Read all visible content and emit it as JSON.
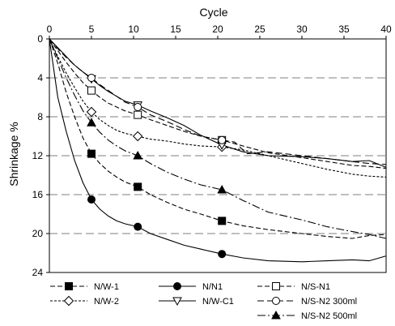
{
  "chart_data": {
    "type": "line",
    "title": "",
    "xlabel": "Cycle",
    "ylabel": "Shrinkage %",
    "xlim": [
      0,
      40
    ],
    "ylim": [
      0,
      24
    ],
    "y_inverted": true,
    "x_axis_position": "top",
    "xticks": [
      0,
      5,
      10,
      15,
      20,
      25,
      30,
      35,
      40
    ],
    "yticks": [
      0,
      4,
      8,
      12,
      16,
      20,
      24
    ],
    "grid": "horizontal dashed",
    "legend_position": "bottom",
    "series": [
      {
        "name": "N/W-1",
        "marker": "square-filled",
        "dash": "6,3",
        "color": "#000000",
        "marker_points": [
          [
            5,
            11.8
          ],
          [
            10.5,
            15.2
          ],
          [
            20.5,
            18.7
          ]
        ],
        "points": [
          [
            0,
            0
          ],
          [
            1,
            2.5
          ],
          [
            2,
            5.5
          ],
          [
            3,
            8
          ],
          [
            4,
            10.2
          ],
          [
            5,
            11.8
          ],
          [
            6,
            12.8
          ],
          [
            7,
            13.6
          ],
          [
            8,
            14.2
          ],
          [
            9,
            14.7
          ],
          [
            10.5,
            15.2
          ],
          [
            12,
            16
          ],
          [
            14,
            16.8
          ],
          [
            16,
            17.5
          ],
          [
            18,
            18
          ],
          [
            20.5,
            18.7
          ],
          [
            23,
            19.2
          ],
          [
            26,
            19.6
          ],
          [
            30,
            20
          ],
          [
            33,
            20.3
          ],
          [
            36,
            20.5
          ],
          [
            38,
            20.2
          ],
          [
            40,
            20.1
          ]
        ]
      },
      {
        "name": "N/N1",
        "marker": "circle-filled",
        "dash": "",
        "color": "#000000",
        "marker_points": [
          [
            5,
            16.5
          ],
          [
            10.5,
            19.3
          ],
          [
            20.5,
            22.1
          ]
        ],
        "points": [
          [
            0,
            0
          ],
          [
            0.5,
            3
          ],
          [
            1,
            6
          ],
          [
            2,
            9.5
          ],
          [
            3,
            12.5
          ],
          [
            4,
            14.8
          ],
          [
            5,
            16.5
          ],
          [
            6,
            17.5
          ],
          [
            7,
            18.2
          ],
          [
            8,
            18.7
          ],
          [
            9,
            19
          ],
          [
            10.5,
            19.3
          ],
          [
            12,
            20
          ],
          [
            14,
            20.6
          ],
          [
            16,
            21.2
          ],
          [
            18,
            21.6
          ],
          [
            20.5,
            22.1
          ],
          [
            23,
            22.5
          ],
          [
            26,
            22.8
          ],
          [
            30,
            22.9
          ],
          [
            33,
            22.8
          ],
          [
            36,
            22.7
          ],
          [
            38,
            22.8
          ],
          [
            40,
            22.3
          ]
        ]
      },
      {
        "name": "N/S-N1",
        "marker": "square-open",
        "dash": "6,3",
        "color": "#000000",
        "marker_points": [
          [
            5,
            5.3
          ],
          [
            10.5,
            7.8
          ],
          [
            20.5,
            10.4
          ]
        ],
        "points": [
          [
            0,
            0
          ],
          [
            1,
            1.2
          ],
          [
            2,
            2.4
          ],
          [
            3,
            3.5
          ],
          [
            4,
            4.5
          ],
          [
            5,
            5.3
          ],
          [
            6,
            6
          ],
          [
            7,
            6.6
          ],
          [
            8,
            7
          ],
          [
            9,
            7.4
          ],
          [
            10.5,
            7.8
          ],
          [
            12,
            8.3
          ],
          [
            14,
            8.9
          ],
          [
            16,
            9.5
          ],
          [
            18,
            10
          ],
          [
            20.5,
            10.4
          ],
          [
            23,
            11
          ],
          [
            26,
            11.7
          ],
          [
            30,
            12.2
          ],
          [
            33,
            12.6
          ],
          [
            36,
            13
          ],
          [
            38,
            13.1
          ],
          [
            40,
            13.3
          ]
        ]
      },
      {
        "name": "N/W-2",
        "marker": "diamond-open",
        "dash": "3,2",
        "color": "#000000",
        "marker_points": [
          [
            5,
            7.5
          ],
          [
            10.5,
            10
          ],
          [
            20.5,
            11.1
          ]
        ],
        "points": [
          [
            0,
            0
          ],
          [
            1,
            1.8
          ],
          [
            2,
            3.5
          ],
          [
            3,
            5
          ],
          [
            4,
            6.4
          ],
          [
            5,
            7.5
          ],
          [
            6,
            8.3
          ],
          [
            7,
            8.9
          ],
          [
            8,
            9.4
          ],
          [
            9,
            9.7
          ],
          [
            10.5,
            10
          ],
          [
            12,
            10.3
          ],
          [
            14,
            10.5
          ],
          [
            16,
            10.8
          ],
          [
            18,
            11
          ],
          [
            20.5,
            11.1
          ],
          [
            23,
            11.4
          ],
          [
            26,
            12
          ],
          [
            30,
            12.8
          ],
          [
            33,
            13.4
          ],
          [
            36,
            13.9
          ],
          [
            38,
            14.1
          ],
          [
            40,
            14.2
          ]
        ]
      },
      {
        "name": "N/W-C1",
        "marker": "triangle-down-open",
        "dash": "",
        "color": "#000000",
        "marker_points": [
          [
            5,
            4.1
          ],
          [
            10.5,
            6.8
          ],
          [
            20.5,
            10.9
          ]
        ],
        "points": [
          [
            0,
            0
          ],
          [
            1,
            0.9
          ],
          [
            2,
            1.8
          ],
          [
            3,
            2.7
          ],
          [
            4,
            3.4
          ],
          [
            5,
            4.1
          ],
          [
            6,
            4.8
          ],
          [
            7,
            5.4
          ],
          [
            8,
            5.9
          ],
          [
            9,
            6.4
          ],
          [
            10.5,
            6.8
          ],
          [
            12,
            7.4
          ],
          [
            14,
            8.1
          ],
          [
            16,
            8.9
          ],
          [
            18,
            9.9
          ],
          [
            20.5,
            10.9
          ],
          [
            23,
            11.6
          ],
          [
            26,
            12
          ],
          [
            30,
            12.1
          ],
          [
            33,
            12.3
          ],
          [
            36,
            12.6
          ],
          [
            38,
            12.5
          ],
          [
            40,
            13.2
          ]
        ]
      },
      {
        "name": "N/S-N2 300ml",
        "marker": "circle-open",
        "dash": "8,4",
        "color": "#000000",
        "marker_points": [
          [
            5,
            4
          ],
          [
            10.5,
            7
          ],
          [
            20.5,
            10.4
          ]
        ],
        "points": [
          [
            0,
            0
          ],
          [
            1,
            1
          ],
          [
            2,
            1.9
          ],
          [
            3,
            2.7
          ],
          [
            4,
            3.4
          ],
          [
            5,
            4
          ],
          [
            6,
            4.7
          ],
          [
            7,
            5.3
          ],
          [
            8,
            5.9
          ],
          [
            9,
            6.5
          ],
          [
            10.5,
            7
          ],
          [
            12,
            7.8
          ],
          [
            14,
            8.5
          ],
          [
            16,
            9.3
          ],
          [
            18,
            10
          ],
          [
            20.5,
            10.4
          ],
          [
            22,
            10.6
          ],
          [
            23.5,
            11.8
          ],
          [
            26,
            11.6
          ],
          [
            30,
            12
          ],
          [
            33,
            12.3
          ],
          [
            36,
            12.6
          ],
          [
            38,
            12.8
          ],
          [
            40,
            12.9
          ]
        ]
      },
      {
        "name": "N/S-N2 500ml",
        "marker": "triangle-up-filled",
        "dash": "10,3,2,3",
        "color": "#000000",
        "marker_points": [
          [
            5,
            8.6
          ],
          [
            10.5,
            12
          ],
          [
            20.5,
            15.5
          ]
        ],
        "points": [
          [
            0,
            0
          ],
          [
            1,
            2
          ],
          [
            2,
            4
          ],
          [
            3,
            5.8
          ],
          [
            4,
            7.4
          ],
          [
            5,
            8.6
          ],
          [
            6,
            9.6
          ],
          [
            7,
            10.4
          ],
          [
            8,
            11
          ],
          [
            9,
            11.5
          ],
          [
            10.5,
            12
          ],
          [
            12,
            12.8
          ],
          [
            14,
            13.7
          ],
          [
            16,
            14.4
          ],
          [
            18,
            15
          ],
          [
            20.5,
            15.5
          ],
          [
            23,
            16.6
          ],
          [
            26,
            17.8
          ],
          [
            30,
            18.6
          ],
          [
            33,
            19.3
          ],
          [
            36,
            19.8
          ],
          [
            38,
            20.1
          ],
          [
            40,
            20.5
          ]
        ]
      }
    ]
  }
}
